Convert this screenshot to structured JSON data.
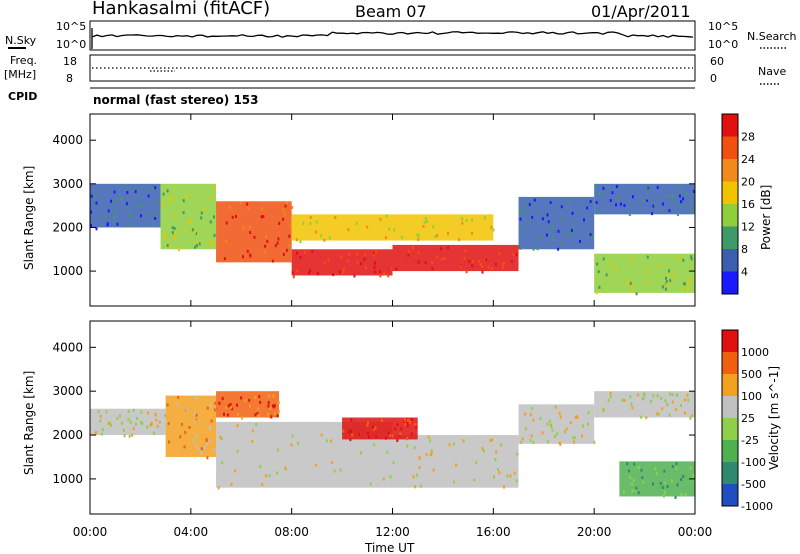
{
  "header": {
    "station": "Hankasalmi (fitACF)",
    "beam": "Beam 07",
    "date": "01/Apr/2011"
  },
  "top_panels": {
    "nsky_label": "N.Sky",
    "nsearch_label": "N.Search",
    "freq_label_1": "Freq.",
    "freq_label_2": "[MHz]",
    "nave_label": "Nave",
    "cpid_label": "CPID",
    "cpid_value": "normal (fast stereo) 153",
    "noise_ticks": [
      "10^5",
      "10^0"
    ],
    "freq_ticks": [
      "18",
      "8"
    ],
    "nave_ticks": [
      "60",
      "0"
    ]
  },
  "colors": {
    "power": [
      "#1a1aff",
      "#3a5fb0",
      "#3f9a6a",
      "#8fcf3a",
      "#f2c300",
      "#f08a1a",
      "#f05010",
      "#e01010"
    ],
    "velocity": [
      "#1f4ec0",
      "#2f8a70",
      "#4fb050",
      "#8fd04a",
      "#c0c0c0",
      "#f2a020",
      "#f06010",
      "#e01010"
    ]
  },
  "chart_data": [
    {
      "type": "heatmap",
      "title": "Power",
      "ylabel": "Slant Range [km]",
      "xlabel": "Time UT",
      "x_ticks": [
        "00:00",
        "04:00",
        "08:00",
        "12:00",
        "16:00",
        "20:00",
        "00:00"
      ],
      "x_range_hours": [
        0,
        24
      ],
      "ylim": [
        200,
        4600
      ],
      "y_ticks": [
        1000,
        2000,
        3000,
        4000
      ],
      "colorbar": {
        "label": "Power [dB]",
        "ticks": [
          4,
          8,
          12,
          16,
          20,
          24,
          28
        ]
      },
      "regions": [
        {
          "t0": 0.0,
          "t1": 2.8,
          "r0": 2000,
          "r1": 3000,
          "level": 1
        },
        {
          "t0": 2.8,
          "t1": 5.0,
          "r0": 1500,
          "r1": 3000,
          "level": 3
        },
        {
          "t0": 5.0,
          "t1": 8.0,
          "r0": 1200,
          "r1": 2600,
          "level": 6
        },
        {
          "t0": 8.0,
          "t1": 12.0,
          "r0": 900,
          "r1": 1500,
          "level": 7
        },
        {
          "t0": 12.0,
          "t1": 17.0,
          "r0": 1000,
          "r1": 1600,
          "level": 7
        },
        {
          "t0": 8.0,
          "t1": 16.0,
          "r0": 1700,
          "r1": 2300,
          "level": 4
        },
        {
          "t0": 17.0,
          "t1": 20.0,
          "r0": 1500,
          "r1": 2700,
          "level": 1
        },
        {
          "t0": 20.0,
          "t1": 24.0,
          "r0": 2300,
          "r1": 3000,
          "level": 1
        },
        {
          "t0": 20.0,
          "t1": 24.0,
          "r0": 500,
          "r1": 1400,
          "level": 3
        }
      ]
    },
    {
      "type": "heatmap",
      "title": "Velocity",
      "ylabel": "Slant Range [km]",
      "xlabel": "Time UT",
      "x_ticks": [
        "00:00",
        "04:00",
        "08:00",
        "12:00",
        "16:00",
        "20:00",
        "00:00"
      ],
      "x_range_hours": [
        0,
        24
      ],
      "ylim": [
        200,
        4600
      ],
      "y_ticks": [
        1000,
        2000,
        3000,
        4000
      ],
      "colorbar": {
        "label": "Velocity [m s^-1]",
        "ticks": [
          1000,
          500,
          100,
          25,
          -25,
          -100,
          -500,
          -1000
        ]
      },
      "regions": [
        {
          "t0": 0.0,
          "t1": 3.0,
          "r0": 2000,
          "r1": 2600,
          "level": 4
        },
        {
          "t0": 3.0,
          "t1": 5.0,
          "r0": 1500,
          "r1": 2900,
          "level": 5
        },
        {
          "t0": 5.0,
          "t1": 12.0,
          "r0": 800,
          "r1": 2300,
          "level": 4
        },
        {
          "t0": 12.0,
          "t1": 17.0,
          "r0": 800,
          "r1": 2000,
          "level": 4
        },
        {
          "t0": 5.0,
          "t1": 7.5,
          "r0": 2400,
          "r1": 3000,
          "level": 6
        },
        {
          "t0": 10.0,
          "t1": 13.0,
          "r0": 1900,
          "r1": 2400,
          "level": 7
        },
        {
          "t0": 17.0,
          "t1": 20.0,
          "r0": 1800,
          "r1": 2700,
          "level": 4
        },
        {
          "t0": 20.0,
          "t1": 24.0,
          "r0": 2400,
          "r1": 3000,
          "level": 4
        },
        {
          "t0": 21.0,
          "t1": 24.0,
          "r0": 600,
          "r1": 1400,
          "level": 2
        }
      ]
    }
  ]
}
